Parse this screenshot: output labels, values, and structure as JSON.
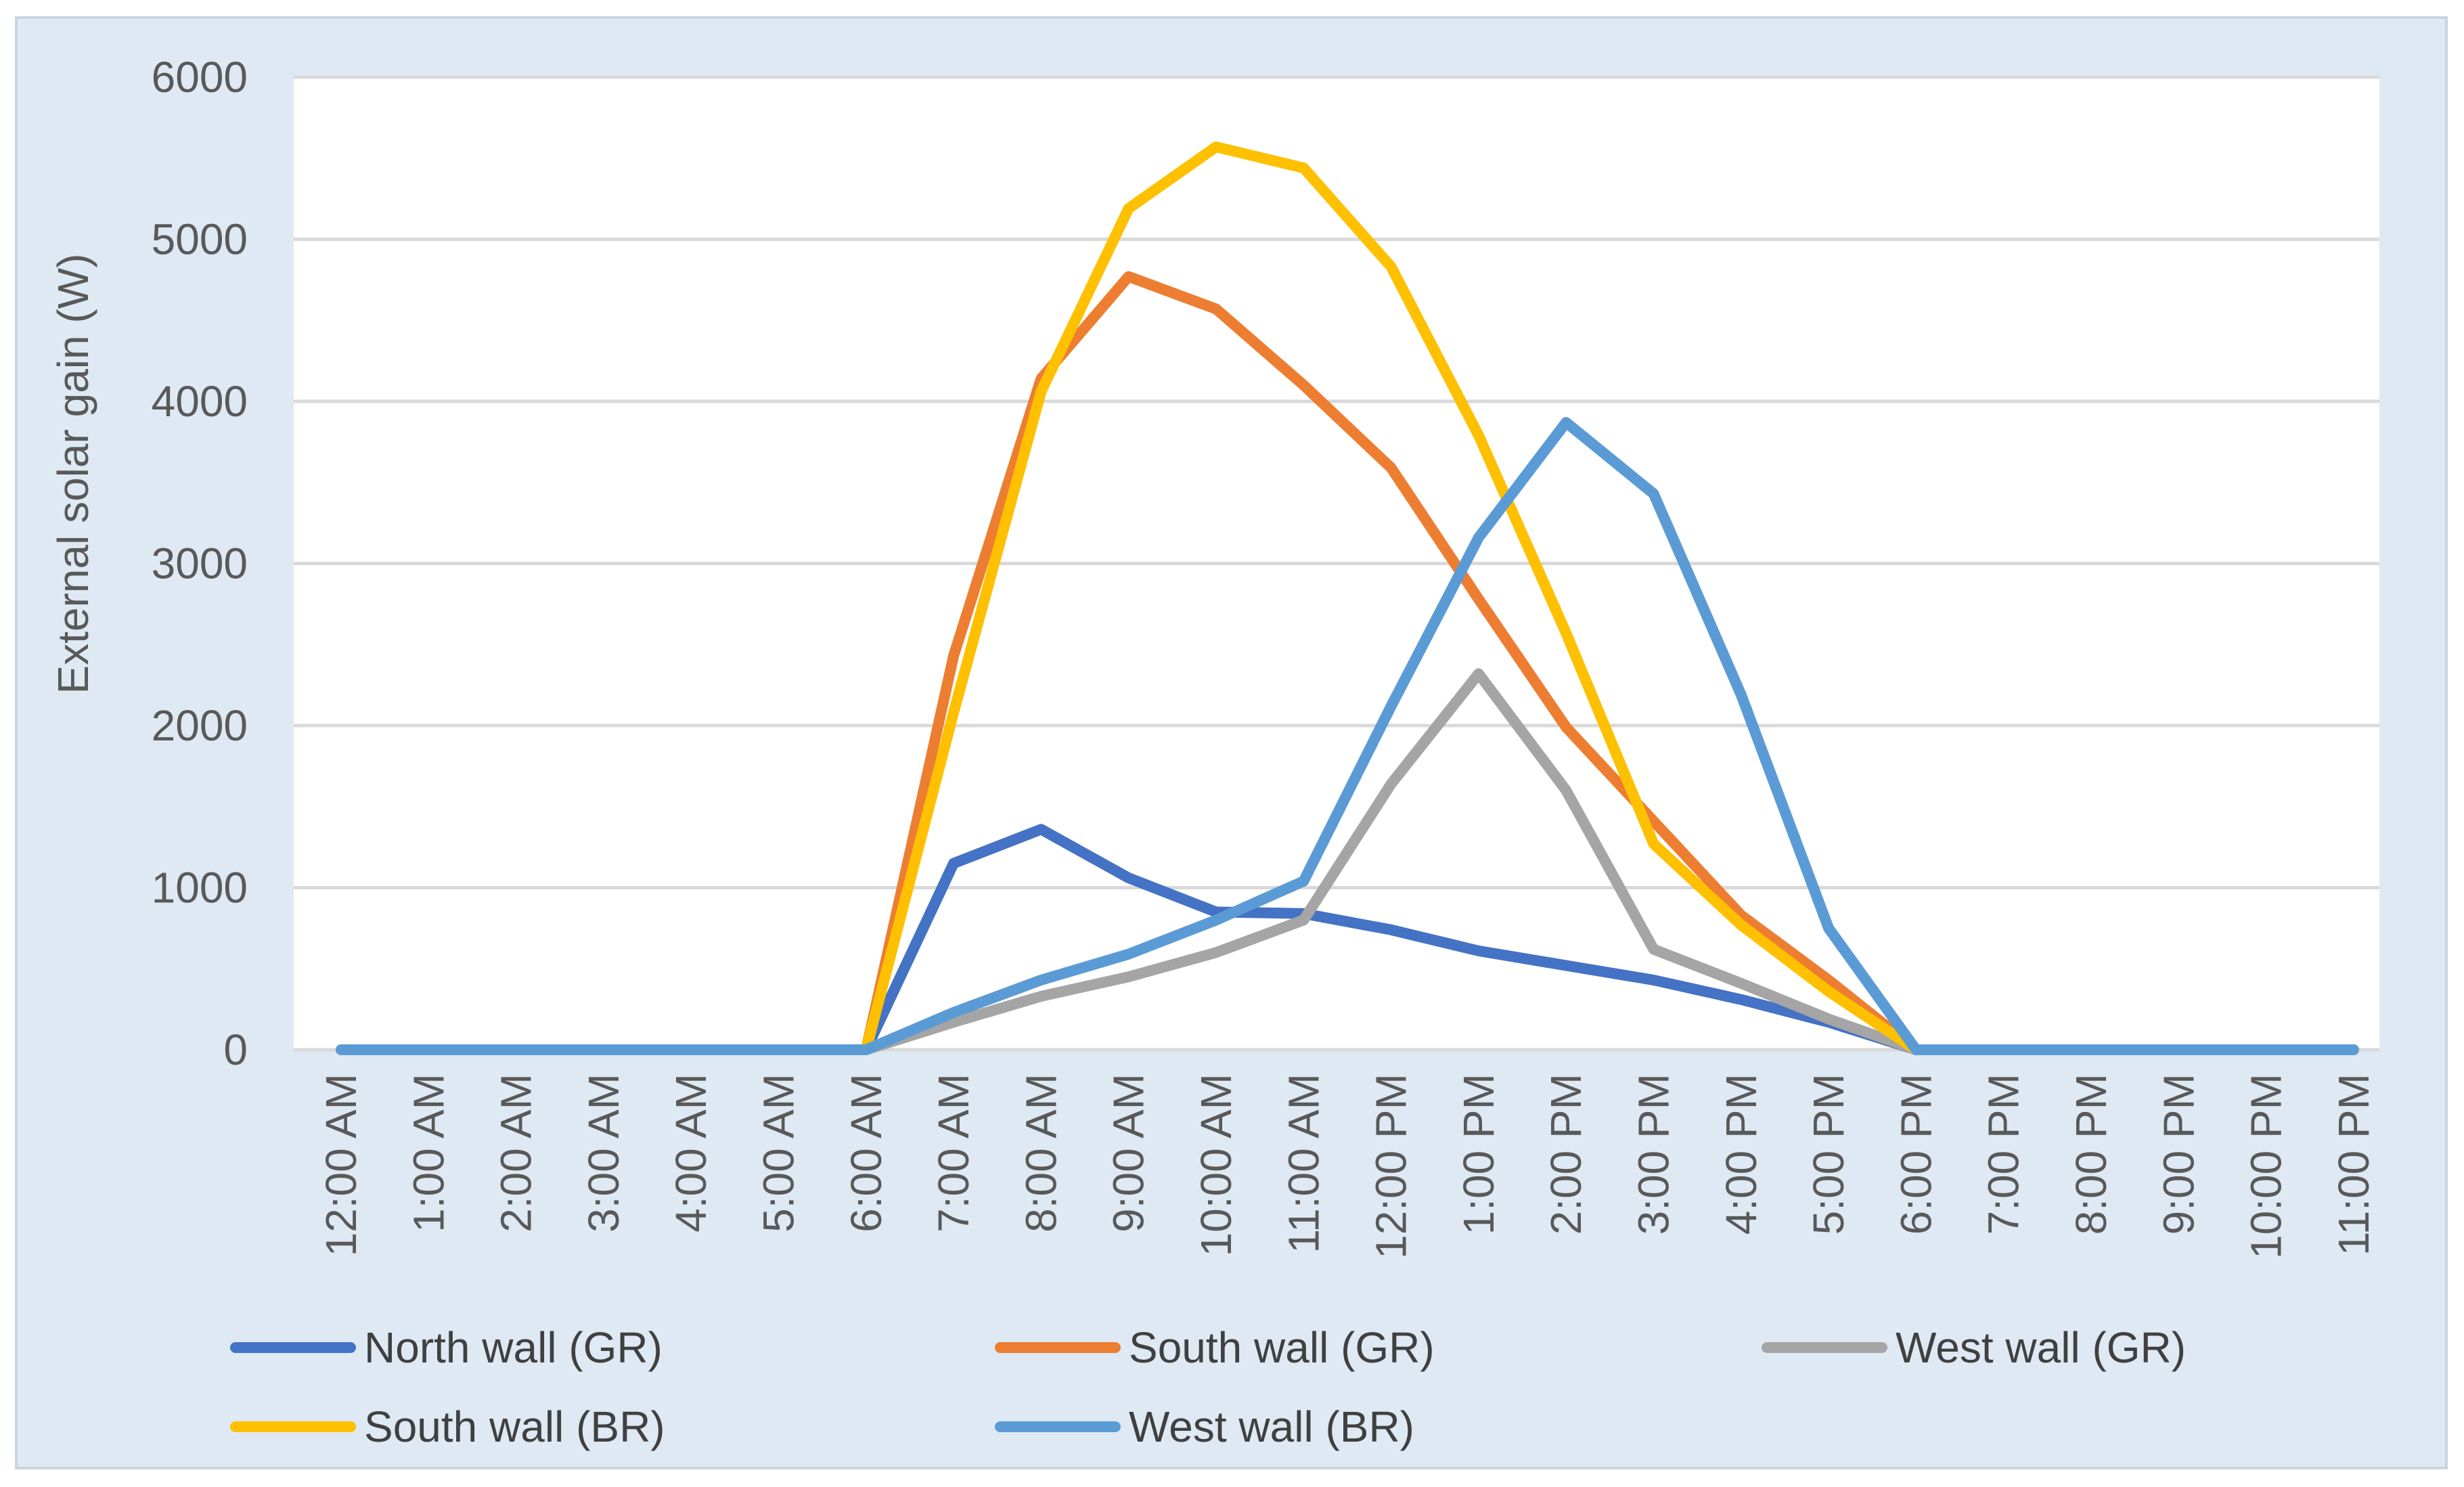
{
  "chart_data": {
    "type": "line",
    "title": "",
    "xlabel": "",
    "ylabel": "External solar gain (W)",
    "ylim": [
      0,
      6000
    ],
    "yticks": [
      0,
      1000,
      2000,
      3000,
      4000,
      5000,
      6000
    ],
    "grid": "horizontal",
    "legend_position": "bottom",
    "categories": [
      "12:00 AM",
      "1:00 AM",
      "2:00 AM",
      "3:00 AM",
      "4:00 AM",
      "5:00 AM",
      "6:00 AM",
      "7:00 AM",
      "8:00 AM",
      "9:00 AM",
      "10:00 AM",
      "11:00 AM",
      "12:00 PM",
      "1:00 PM",
      "2:00 PM",
      "3:00 PM",
      "4:00 PM",
      "5:00 PM",
      "6:00 PM",
      "7:00 PM",
      "8:00 PM",
      "9:00 PM",
      "10:00 PM",
      "11:00 PM"
    ],
    "series": [
      {
        "name": "North wall (GR)",
        "color": "#4472c4",
        "values": [
          0,
          0,
          0,
          0,
          0,
          0,
          0,
          1150,
          1360,
          1060,
          850,
          840,
          740,
          610,
          520,
          430,
          310,
          170,
          0,
          0,
          0,
          0,
          0,
          0
        ]
      },
      {
        "name": "South wall (GR)",
        "color": "#ed7d31",
        "values": [
          0,
          0,
          0,
          0,
          0,
          0,
          0,
          2430,
          4140,
          4770,
          4570,
          4100,
          3590,
          2780,
          1990,
          1410,
          830,
          430,
          0,
          0,
          0,
          0,
          0,
          0
        ]
      },
      {
        "name": "West wall (GR)",
        "color": "#a5a5a5",
        "values": [
          0,
          0,
          0,
          0,
          0,
          0,
          0,
          170,
          330,
          450,
          600,
          800,
          1640,
          2320,
          1600,
          620,
          410,
          190,
          0,
          0,
          0,
          0,
          0,
          0
        ]
      },
      {
        "name": "South wall (BR)",
        "color": "#ffc000",
        "values": [
          0,
          0,
          0,
          0,
          0,
          0,
          0,
          2080,
          4060,
          5190,
          5570,
          5440,
          4830,
          3790,
          2570,
          1270,
          770,
          360,
          0,
          0,
          0,
          0,
          0,
          0
        ]
      },
      {
        "name": "West wall (BR)",
        "color": "#5b9bd5",
        "values": [
          0,
          0,
          0,
          0,
          0,
          0,
          0,
          230,
          430,
          590,
          800,
          1040,
          2120,
          3160,
          3870,
          3430,
          2190,
          750,
          0,
          0,
          0,
          0,
          0,
          0
        ]
      }
    ]
  }
}
